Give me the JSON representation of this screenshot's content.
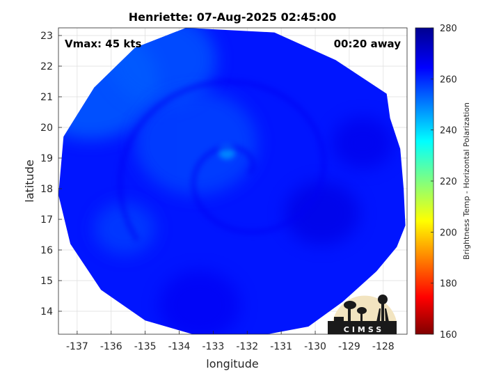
{
  "chart_data": {
    "type": "heatmap",
    "title": "Henriette: 07-Aug-2025 02:45:00",
    "xlabel": "longitude",
    "ylabel": "latitude",
    "xlim": [
      -137.55,
      -127.3
    ],
    "ylim": [
      13.25,
      23.25
    ],
    "xticks": [
      -137,
      -136,
      -135,
      -134,
      -133,
      -132,
      -131,
      -130,
      -129,
      -128
    ],
    "yticks": [
      14,
      15,
      16,
      17,
      18,
      19,
      20,
      21,
      22,
      23
    ],
    "grid": true,
    "annotations": {
      "left": "Vmax: 45 kts",
      "right": "00:20 away"
    },
    "colorbar": {
      "label": "Brightness Temp - Horizontal Polarization",
      "min": 160,
      "max": 280,
      "ticks": [
        160,
        180,
        200,
        220,
        240,
        260,
        280
      ],
      "colormap": "jet"
    },
    "field": {
      "background_value": 262,
      "swath_boundary_lonlat": [
        [
          -133.8,
          23.25
        ],
        [
          -131.2,
          23.1
        ],
        [
          -129.4,
          22.2
        ],
        [
          -127.9,
          21.1
        ],
        [
          -127.8,
          20.3
        ],
        [
          -127.5,
          19.3
        ],
        [
          -127.4,
          18.0
        ],
        [
          -127.35,
          16.8
        ],
        [
          -127.6,
          16.1
        ],
        [
          -128.2,
          15.3
        ],
        [
          -129.2,
          14.3
        ],
        [
          -130.2,
          13.5
        ],
        [
          -131.4,
          13.25
        ],
        [
          -133.6,
          13.25
        ],
        [
          -135.0,
          13.7
        ],
        [
          -136.3,
          14.7
        ],
        [
          -137.2,
          16.2
        ],
        [
          -137.55,
          17.8
        ],
        [
          -137.4,
          19.7
        ],
        [
          -136.5,
          21.3
        ],
        [
          -135.3,
          22.6
        ]
      ],
      "features": [
        {
          "kind": "warm-band",
          "value": 253,
          "center": [
            -136.6,
            21.5
          ],
          "radius_deg": 2.0
        },
        {
          "kind": "warm-band",
          "value": 254,
          "center": [
            -134.5,
            22.2
          ],
          "radius_deg": 1.6
        },
        {
          "kind": "warm-band",
          "value": 256,
          "center": [
            -133.5,
            19.5
          ],
          "radius_deg": 1.8
        },
        {
          "kind": "warm-band",
          "value": 257,
          "center": [
            -135.6,
            16.7
          ],
          "radius_deg": 0.9
        },
        {
          "kind": "warm-spot",
          "value": 248,
          "center": [
            -132.6,
            19.2
          ],
          "radius_deg": 0.25
        },
        {
          "kind": "cold-band",
          "value": 268,
          "center": [
            -129.8,
            17.2
          ],
          "radius_deg": 1.1
        },
        {
          "kind": "cold-band",
          "value": 267,
          "center": [
            -128.6,
            19.5
          ],
          "radius_deg": 0.9
        },
        {
          "kind": "cold-band",
          "value": 266,
          "center": [
            -133.4,
            14.2
          ],
          "radius_deg": 1.2
        }
      ]
    }
  },
  "logo": {
    "text": "CIMSS"
  }
}
